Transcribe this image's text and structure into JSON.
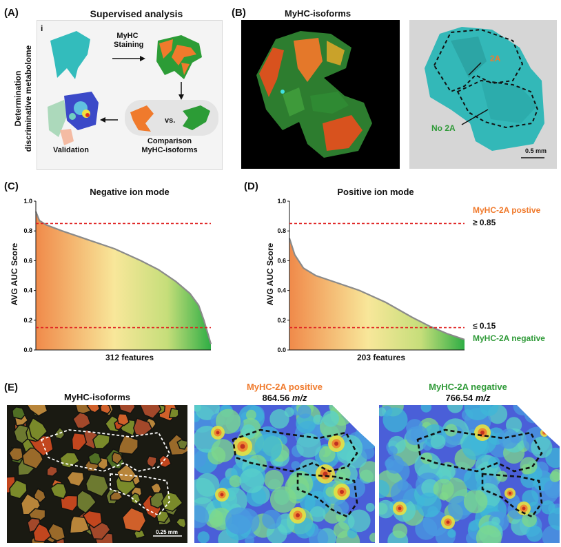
{
  "panelA": {
    "label": "(A)",
    "title": "Supervised analysis",
    "sublabel": "i",
    "side_label_1": "Determination",
    "side_label_2": "discriminative metabolome",
    "step_stain_1": "MyHC",
    "step_stain_2": "Staining",
    "vs": "vs.",
    "comparison_1": "Comparison",
    "comparison_2": "MyHC-isoforms",
    "validation": "Validation"
  },
  "panelB": {
    "label": "(B)",
    "title": "MyHC-isoforms",
    "label_2a": "2A",
    "label_no2a": "No 2A",
    "scale": "0.5 mm"
  },
  "panelC": {
    "label": "(C)",
    "title": "Negative ion mode",
    "ylabel": "AVG AUC Score",
    "xlabel": "312 features"
  },
  "panelD": {
    "label": "(D)",
    "title": "Positive ion mode",
    "xlabel": "203 features",
    "pos_label": "MyHC-2A postive",
    "pos_thresh": "≥ 0.85",
    "neg_thresh": "≤ 0.15",
    "neg_label": "MyHC-2A negative"
  },
  "panelE": {
    "label": "(E)",
    "title1": "MyHC-isoforms",
    "title2a": "MyHC-2A positive",
    "title2b_num": "864.56",
    "title3a": "MyHC-2A negative",
    "title3b_num": "766.54",
    "mz": "m/z",
    "scale": "0.25 mm"
  },
  "colors": {
    "orange": "#f07a2c",
    "green": "#2f9a38",
    "teal": "#33bcbc",
    "threshold": "#e02020"
  },
  "chart_data": [
    {
      "type": "area",
      "title": "Negative ion mode",
      "xlabel": "312 features",
      "ylabel": "AVG AUC Score",
      "n_features": 312,
      "ylim": [
        0,
        1.0
      ],
      "yticks": [
        0.0,
        0.2,
        0.4,
        0.6,
        0.8,
        1.0
      ],
      "thresholds": [
        0.85,
        0.15
      ],
      "curve": {
        "x_frac": [
          0,
          0.02,
          0.06,
          0.15,
          0.3,
          0.45,
          0.6,
          0.7,
          0.8,
          0.88,
          0.93,
          0.96,
          0.99,
          1.0
        ],
        "y": [
          0.93,
          0.87,
          0.84,
          0.8,
          0.74,
          0.68,
          0.6,
          0.54,
          0.46,
          0.38,
          0.3,
          0.2,
          0.08,
          0.04
        ]
      }
    },
    {
      "type": "area",
      "title": "Positive ion mode",
      "xlabel": "203 features",
      "ylabel": "AVG AUC Score",
      "n_features": 203,
      "ylim": [
        0,
        1.0
      ],
      "yticks": [
        0.0,
        0.2,
        0.4,
        0.6,
        0.8,
        1.0
      ],
      "thresholds": [
        0.85,
        0.15
      ],
      "curve": {
        "x_frac": [
          0,
          0.03,
          0.08,
          0.15,
          0.25,
          0.4,
          0.55,
          0.7,
          0.8,
          0.9,
          0.95,
          1.0
        ],
        "y": [
          0.75,
          0.64,
          0.55,
          0.5,
          0.46,
          0.4,
          0.32,
          0.22,
          0.16,
          0.11,
          0.09,
          0.07
        ]
      }
    }
  ]
}
